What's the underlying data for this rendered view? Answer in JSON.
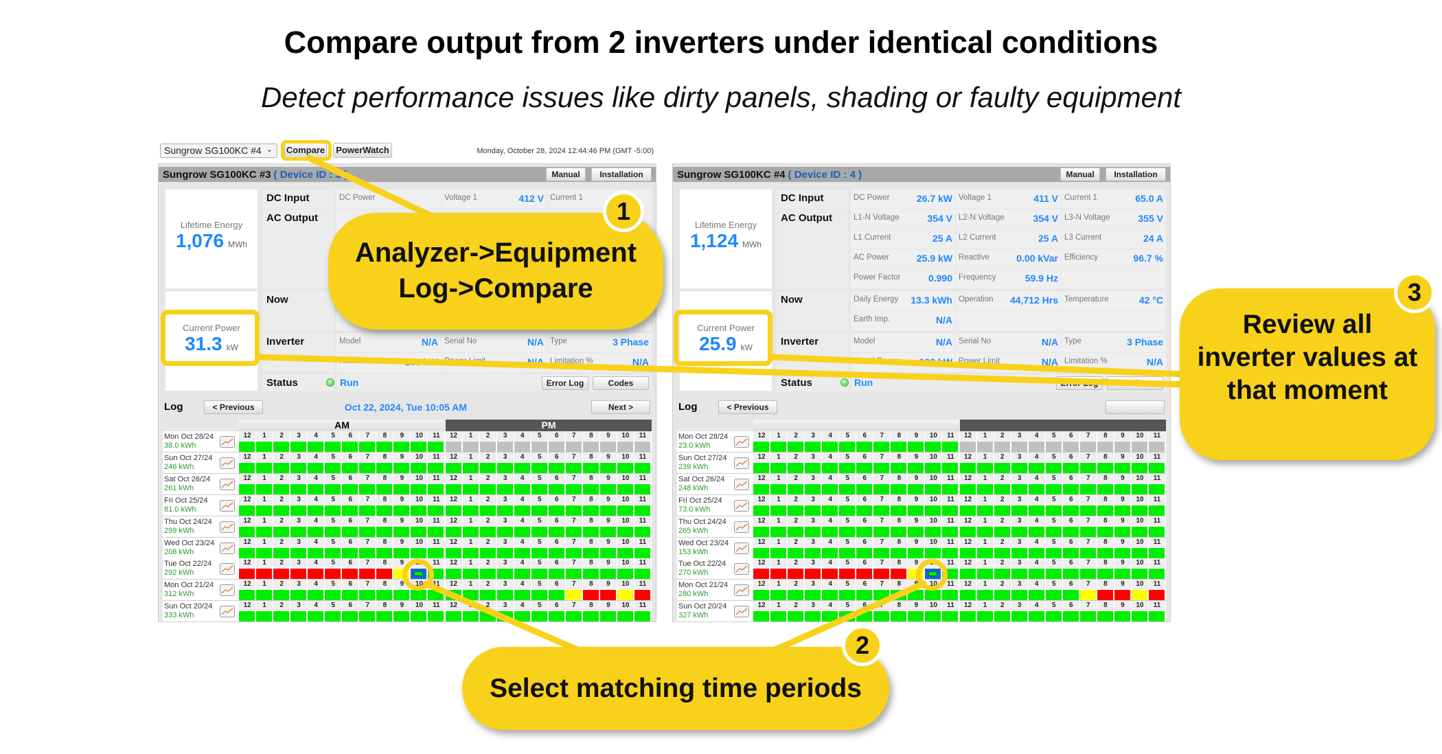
{
  "header": {
    "title": "Compare output from 2 inverters under identical conditions",
    "subtitle": "Detect performance issues like dirty panels, shading or faulty equipment"
  },
  "toolbar": {
    "device_select": "Sungrow SG100KC #4",
    "compare_label": "Compare",
    "powerwatch_label": "PowerWatch",
    "datetime": "Monday, October 28, 2024 12:44:46 PM (GMT -5:00)"
  },
  "colors": {
    "callout": "#f8d11a",
    "value_blue": "#1e88ff",
    "good": "#00ee00",
    "warn": "#ffff00",
    "fault": "#ff0000",
    "nodata": "#c0c0c0",
    "selected": "#1565d8"
  },
  "legend_codes": {
    "g": "good",
    "y": "warn",
    "r": "fault",
    "x": "nodata",
    "s": "selected"
  },
  "panels": [
    {
      "name": "Sungrow SG100KC #3",
      "device_id": "( Device ID : 3 )",
      "manual_label": "Manual",
      "installation_label": "Installation",
      "lifetime_label": "Lifetime Energy",
      "lifetime_value": "1,076",
      "lifetime_unit": "MWh",
      "current_label": "Current Power",
      "current_value": "31.3",
      "current_unit": "kW",
      "groups": [
        {
          "name": "DC Input",
          "rows": [
            [
              {
                "label": "DC Power",
                "value": ""
              },
              {
                "label": "Voltage 1",
                "value": "412 V"
              },
              {
                "label": "Current 1",
                "value": ""
              }
            ]
          ]
        },
        {
          "name": "AC Output",
          "rows": [
            [
              {},
              {},
              {}
            ],
            [
              {},
              {},
              {}
            ],
            [
              {},
              {},
              {}
            ],
            [
              {},
              {},
              {}
            ]
          ]
        },
        {
          "name": "Now",
          "rows": [
            [
              {},
              {},
              {}
            ],
            [
              {},
              {},
              {}
            ]
          ]
        },
        {
          "name": "Inverter",
          "rows": [
            [
              {
                "label": "Model",
                "value": "N/A"
              },
              {
                "label": "Serial No",
                "value": "N/A"
              },
              {
                "label": "Type",
                "value": "3 Phase"
              }
            ],
            [
              {
                "label": "Rated Power",
                "value": "100 kW"
              },
              {
                "label": "Power Limit",
                "value": "N/A"
              },
              {
                "label": "Limitation %",
                "value": "N/A"
              }
            ]
          ]
        }
      ],
      "status_label": "Status",
      "status_value": "Run",
      "error_log_label": "Error Log",
      "codes_label": "Codes",
      "log": {
        "title": "Log",
        "prev_label": "< Previous",
        "next_label": "Next >",
        "selected_time": "Oct 22, 2024, Tue 10:05 AM",
        "am_label": "AM",
        "pm_label": "PM",
        "hours": [
          "12",
          "1",
          "2",
          "3",
          "4",
          "5",
          "6",
          "7",
          "8",
          "9",
          "10",
          "11",
          "12",
          "1",
          "2",
          "3",
          "4",
          "5",
          "6",
          "7",
          "8",
          "9",
          "10",
          "11"
        ],
        "days": [
          {
            "date": "Mon Oct 28/24",
            "energy": "38.0 kWh",
            "status": "ggggggggggggxxxxxxxxxxxx"
          },
          {
            "date": "Sun Oct 27/24",
            "energy": "246 kWh",
            "status": "gggggggggggggggggggggggg"
          },
          {
            "date": "Sat Oct 26/24",
            "energy": "261 kWh",
            "status": "gggggggggggggggggggggggg"
          },
          {
            "date": "Fri Oct 25/24",
            "energy": "81.0 kWh",
            "status": "gggggggggggggggggggggggg"
          },
          {
            "date": "Thu Oct 24/24",
            "energy": "299 kWh",
            "status": "gggggggggggggggggggggggg"
          },
          {
            "date": "Wed Oct 23/24",
            "energy": "208 kWh",
            "status": "gggggggggggggggggggggggg"
          },
          {
            "date": "Tue Oct 22/24",
            "energy": "292 kWh",
            "status": "rrrrrrrrrysggggggggggggg"
          },
          {
            "date": "Mon Oct 21/24",
            "energy": "312 kWh",
            "status": "gggggggggggggggggggyrryr"
          },
          {
            "date": "Sun Oct 20/24",
            "energy": "333 kWh",
            "status": "gggggggggggggggggggggggg"
          }
        ]
      }
    },
    {
      "name": "Sungrow SG100KC #4",
      "device_id": "( Device ID : 4 )",
      "manual_label": "Manual",
      "installation_label": "Installation",
      "lifetime_label": "Lifetime Energy",
      "lifetime_value": "1,124",
      "lifetime_unit": "MWh",
      "current_label": "Current Power",
      "current_value": "25.9",
      "current_unit": "kW",
      "groups": [
        {
          "name": "DC Input",
          "rows": [
            [
              {
                "label": "DC Power",
                "value": "26.7 kW"
              },
              {
                "label": "Voltage 1",
                "value": "411 V"
              },
              {
                "label": "Current 1",
                "value": "65.0 A"
              }
            ]
          ]
        },
        {
          "name": "AC Output",
          "rows": [
            [
              {
                "label": "L1-N Voltage",
                "value": "354 V"
              },
              {
                "label": "L2-N Voltage",
                "value": "354 V"
              },
              {
                "label": "L3-N Voltage",
                "value": "355 V"
              }
            ],
            [
              {
                "label": "L1 Current",
                "value": "25 A"
              },
              {
                "label": "L2 Current",
                "value": "25 A"
              },
              {
                "label": "L3 Current",
                "value": "24 A"
              }
            ],
            [
              {
                "label": "AC Power",
                "value": "25.9 kW"
              },
              {
                "label": "Reactive",
                "value": "0.00 kVar"
              },
              {
                "label": "Efficiency",
                "value": "96.7 %"
              }
            ],
            [
              {
                "label": "Power Factor",
                "value": "0.990"
              },
              {
                "label": "Frequency",
                "value": "59.9 Hz"
              },
              {}
            ]
          ]
        },
        {
          "name": "Now",
          "rows": [
            [
              {
                "label": "Daily Energy",
                "value": "13.3 kWh"
              },
              {
                "label": "Operation",
                "value": "44,712 Hrs"
              },
              {
                "label": "Temperature",
                "value": "42 °C"
              }
            ],
            [
              {
                "label": "Earth Imp.",
                "value": "N/A"
              },
              {},
              {}
            ]
          ]
        },
        {
          "name": "Inverter",
          "rows": [
            [
              {
                "label": "Model",
                "value": "N/A"
              },
              {
                "label": "Serial No",
                "value": "N/A"
              },
              {
                "label": "Type",
                "value": "3 Phase"
              }
            ],
            [
              {
                "label": "Rated Power",
                "value": "100 kW"
              },
              {
                "label": "Power Limit",
                "value": "N/A"
              },
              {
                "label": "Limitation %",
                "value": "N/A"
              }
            ]
          ]
        }
      ],
      "status_label": "Status",
      "status_value": "Run",
      "error_log_label": "Error Log",
      "codes_label": "Codes",
      "log": {
        "title": "Log",
        "prev_label": "< Previous",
        "next_label": "",
        "selected_time": "",
        "am_label": "",
        "pm_label": "",
        "hours": [
          "12",
          "1",
          "2",
          "3",
          "4",
          "5",
          "6",
          "7",
          "8",
          "9",
          "10",
          "11",
          "12",
          "1",
          "2",
          "3",
          "4",
          "5",
          "6",
          "7",
          "8",
          "9",
          "10",
          "11"
        ],
        "days": [
          {
            "date": "Mon Oct 28/24",
            "energy": "23.0 kWh",
            "status": "ggggggggggggxxxxxxxxxxxx"
          },
          {
            "date": "Sun Oct 27/24",
            "energy": "239 kWh",
            "status": "gggggggggggggggggggggggg"
          },
          {
            "date": "Sat Oct 26/24",
            "energy": "248 kWh",
            "status": "gggggggggggggggggggggggg"
          },
          {
            "date": "Fri Oct 25/24",
            "energy": "73.0 kWh",
            "status": "gggggggggggggggggggggggg"
          },
          {
            "date": "Thu Oct 24/24",
            "energy": "265 kWh",
            "status": "gggggggggggggggggggggggg"
          },
          {
            "date": "Wed Oct 23/24",
            "energy": "153 kWh",
            "status": "gggggggggggggggggggggggg"
          },
          {
            "date": "Tue Oct 22/24",
            "energy": "270 kWh",
            "status": "rrrrrrrrrysggggggggggggg"
          },
          {
            "date": "Mon Oct 21/24",
            "energy": "280 kWh",
            "status": "gggggggggggggggggggyrryr"
          },
          {
            "date": "Sun Oct 20/24",
            "energy": "327 kWh",
            "status": "gggggggggggggggggggggggg"
          }
        ]
      }
    }
  ],
  "callouts": [
    {
      "number": "1",
      "line1": "Analyzer->Equipment",
      "line2": "Log->Compare"
    },
    {
      "number": "2",
      "text": "Select matching time periods"
    },
    {
      "number": "3",
      "text": "Review all inverter values at that moment"
    }
  ]
}
